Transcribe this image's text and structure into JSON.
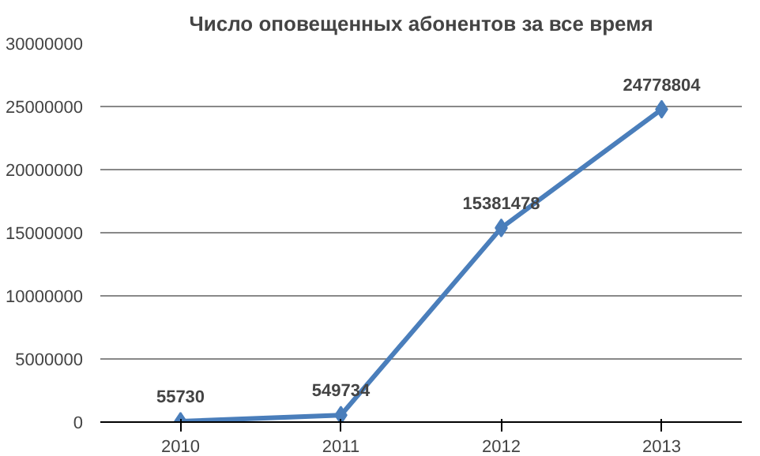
{
  "chart_data": {
    "type": "line",
    "title": "Число оповещенных абонентов за все время",
    "categories": [
      "2010",
      "2011",
      "2012",
      "2013"
    ],
    "values": [
      55730,
      549734,
      15381478,
      24778804
    ],
    "color": "#4a7ebb",
    "marker": "diamond",
    "line_style": "solid",
    "data_labels": true,
    "ylim": [
      0,
      30000000
    ],
    "yticks": [
      0,
      5000000,
      10000000,
      15000000,
      20000000,
      25000000,
      30000000
    ],
    "grid": "y"
  }
}
